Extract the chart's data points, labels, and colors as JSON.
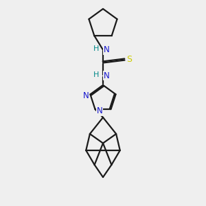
{
  "bg_color": "#efefef",
  "bond_color": "#1a1a1a",
  "N_color": "#1414cc",
  "S_color": "#cccc00",
  "H_color": "#008888",
  "line_width": 1.6,
  "font_size": 8.5,
  "xlim": [
    0,
    10
  ],
  "ylim": [
    0,
    10
  ]
}
